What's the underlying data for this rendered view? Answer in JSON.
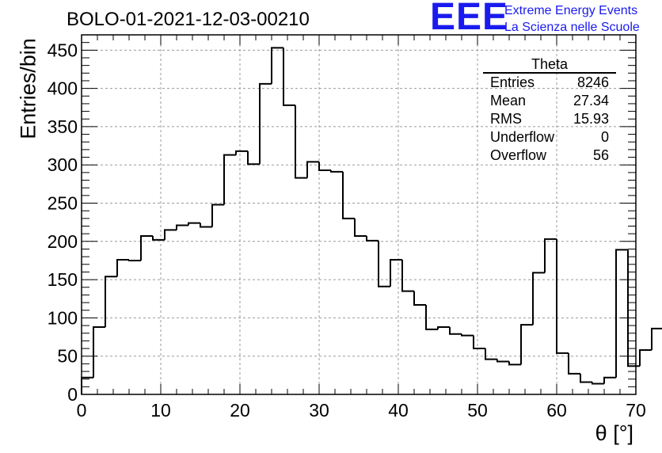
{
  "title": "BOLO-01-2021-12-03-00210",
  "logo": {
    "text": "EEE",
    "line1": "Extreme Energy Events",
    "line2": "La Scienza nelle Scuole",
    "color": "#1a1aee"
  },
  "stats": {
    "name": "Theta",
    "rows": [
      {
        "label": "Entries",
        "value": "8246"
      },
      {
        "label": "Mean",
        "value": "27.34"
      },
      {
        "label": "RMS",
        "value": "15.93"
      },
      {
        "label": "Underflow",
        "value": "0"
      },
      {
        "label": "Overflow",
        "value": "56"
      }
    ]
  },
  "chart_data": {
    "type": "bar",
    "title": "BOLO-01-2021-12-03-00210",
    "xlabel": "θ [°]",
    "ylabel": "Entries/bin",
    "xlim": [
      0,
      70
    ],
    "ylim": [
      0,
      470
    ],
    "xticks": [
      0,
      10,
      20,
      30,
      40,
      50,
      60,
      70
    ],
    "yticks": [
      0,
      50,
      100,
      150,
      200,
      250,
      300,
      350,
      400,
      450
    ],
    "grid": true,
    "bin_width": 1.5,
    "bin_edges_start": 0,
    "values": [
      22,
      88,
      154,
      176,
      175,
      207,
      202,
      215,
      221,
      224,
      219,
      248,
      313,
      318,
      301,
      406,
      453,
      378,
      283,
      304,
      293,
      291,
      230,
      207,
      201,
      141,
      176,
      135,
      117,
      85,
      88,
      79,
      77,
      60,
      46,
      43,
      39,
      91,
      159,
      203,
      54,
      27,
      16,
      14,
      22,
      189,
      37,
      58,
      86
    ],
    "line_color": "#000000"
  }
}
